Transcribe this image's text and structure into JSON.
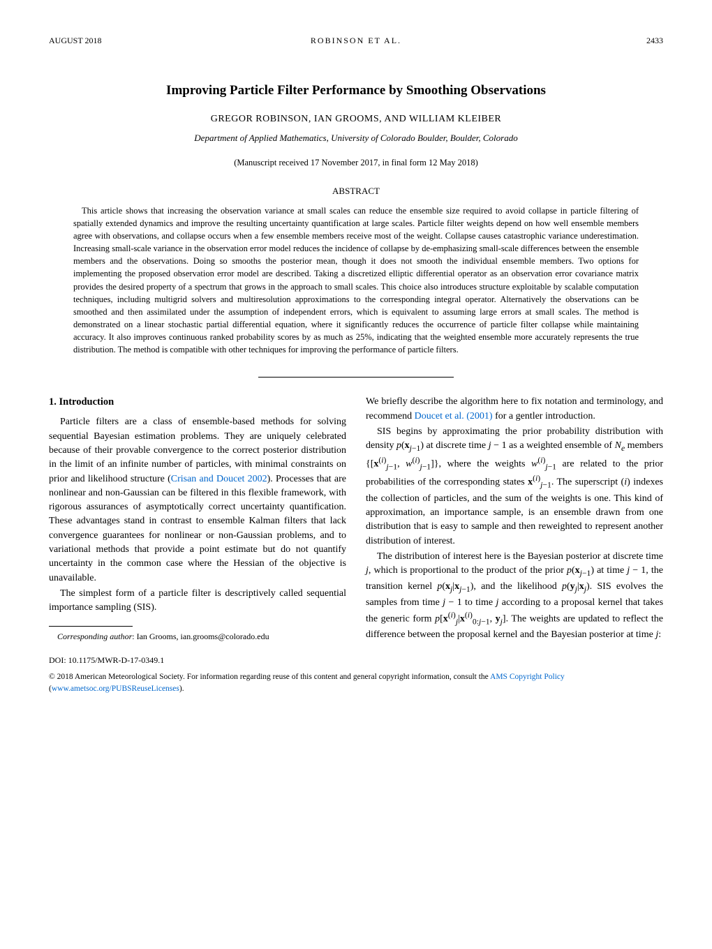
{
  "header": {
    "date": "AUGUST 2018",
    "center": "ROBINSON ET AL.",
    "page": "2433"
  },
  "title": "Improving Particle Filter Performance by Smoothing Observations",
  "authors": "GREGOR ROBINSON, IAN GROOMS, AND WILLIAM KLEIBER",
  "affiliation": "Department of Applied Mathematics, University of Colorado Boulder, Boulder, Colorado",
  "manuscript": "(Manuscript received 17 November 2017, in final form 12 May 2018)",
  "abstract_heading": "ABSTRACT",
  "abstract": "This article shows that increasing the observation variance at small scales can reduce the ensemble size required to avoid collapse in particle filtering of spatially extended dynamics and improve the resulting uncertainty quantification at large scales. Particle filter weights depend on how well ensemble members agree with observations, and collapse occurs when a few ensemble members receive most of the weight. Collapse causes catastrophic variance underestimation. Increasing small-scale variance in the observation error model reduces the incidence of collapse by de-emphasizing small-scale differences between the ensemble members and the observations. Doing so smooths the posterior mean, though it does not smooth the individual ensemble members. Two options for implementing the proposed observation error model are described. Taking a discretized elliptic differential operator as an observation error covariance matrix provides the desired property of a spectrum that grows in the approach to small scales. This choice also introduces structure exploitable by scalable computation techniques, including multigrid solvers and multiresolution approximations to the corresponding integral operator. Alternatively the observations can be smoothed and then assimilated under the assumption of independent errors, which is equivalent to assuming large errors at small scales. The method is demonstrated on a linear stochastic partial differential equation, where it significantly reduces the occurrence of particle filter collapse while maintaining accuracy. It also improves continuous ranked probability scores by as much as 25%, indicating that the weighted ensemble more accurately represents the true distribution. The method is compatible with other techniques for improving the performance of particle filters.",
  "section1_heading": "1. Introduction",
  "left_col": {
    "p1": "Particle filters are a class of ensemble-based methods for solving sequential Bayesian estimation problems. They are uniquely celebrated because of their provable convergence to the correct posterior distribution in the limit of an infinite number of particles, with minimal constraints on prior and likelihood structure (Crisan and Doucet 2002). Processes that are nonlinear and non-Gaussian can be filtered in this flexible framework, with rigorous assurances of asymptotically correct uncertainty quantification. These advantages stand in contrast to ensemble Kalman filters that lack convergence guarantees for nonlinear or non-Gaussian problems, and to variational methods that provide a point estimate but do not quantify uncertainty in the common case where the Hessian of the objective is unavailable.",
    "p2": "The simplest form of a particle filter is descriptively called sequential importance sampling (SIS)."
  },
  "right_col": {
    "p1": "We briefly describe the algorithm here to fix notation and terminology, and recommend Doucet et al. (2001) for a gentler introduction.",
    "p2": "SIS begins by approximating the prior probability distribution with density p(xⱼ₋₁) at discrete time j − 1 as a weighted ensemble of Nₑ members {[x⁽ⁱ⁾ⱼ₋₁, w⁽ⁱ⁾ⱼ₋₁]}, where the weights w⁽ⁱ⁾ⱼ₋₁ are related to the prior probabilities of the corresponding states x⁽ⁱ⁾ⱼ₋₁. The superscript (i) indexes the collection of particles, and the sum of the weights is one. This kind of approximation, an importance sample, is an ensemble drawn from one distribution that is easy to sample and then reweighted to represent another distribution of interest.",
    "p3": "The distribution of interest here is the Bayesian posterior at discrete time j, which is proportional to the product of the prior p(xⱼ₋₁) at time j − 1, the transition kernel p(xⱼ|xⱼ₋₁), and the likelihood p(yⱼ|xⱼ). SIS evolves the samples from time j − 1 to time j according to a proposal kernel that takes the generic form p[x⁽ⁱ⁾ⱼ|x⁽ⁱ⁾₀:ⱼ₋₁, yⱼ]. The weights are updated to reflect the difference between the proposal kernel and the Bayesian posterior at time j:"
  },
  "corresponding_label": "Corresponding author",
  "corresponding_text": ": Ian Grooms, ian.grooms@colorado.edu",
  "doi": "DOI: 10.1175/MWR-D-17-0349.1",
  "copyright_prefix": "© 2018 American Meteorological Society. For information regarding reuse of this content and general copyright information, consult the ",
  "copyright_link1": "AMS Copyright Policy",
  "copyright_mid": " (",
  "copyright_link2": "www.ametsoc.org/PUBSReuseLicenses",
  "copyright_suffix": ").",
  "links": {
    "citation1": "Crisan and Doucet 2002",
    "citation2": "Doucet et al. (2001)"
  }
}
